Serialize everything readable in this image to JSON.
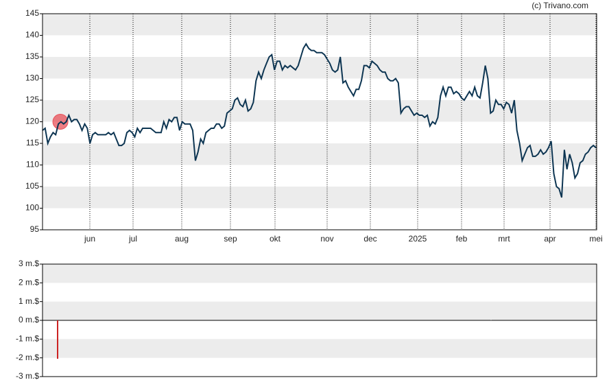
{
  "credit": "(c) Trivano.com",
  "chart_data": [
    {
      "type": "line",
      "ylim": [
        95,
        145
      ],
      "yticks": [
        95,
        100,
        105,
        110,
        115,
        120,
        125,
        130,
        135,
        140,
        145
      ],
      "xtick_labels": [
        "jun",
        "jul",
        "aug",
        "sep",
        "okt",
        "nov",
        "dec",
        "2025",
        "feb",
        "mrt",
        "apr",
        "mei"
      ],
      "grid": true,
      "marker_value": 120,
      "marker_color": "#e8525a",
      "series": [
        {
          "color": "#0d3552",
          "values": [
            118,
            118.5,
            115,
            116.5,
            117.5,
            117,
            119.5,
            120,
            119.5,
            120,
            121.5,
            120,
            120.5,
            120.5,
            119.5,
            118,
            119.5,
            118.5,
            115,
            117,
            117.5,
            117,
            117,
            117,
            117,
            117.5,
            117,
            117.5,
            116,
            114.5,
            114.5,
            115,
            117.5,
            118,
            117.5,
            116.5,
            118.5,
            117.5,
            118.5,
            118.5,
            118.5,
            118.5,
            118,
            117.5,
            117.5,
            117.5,
            120,
            118.5,
            120.5,
            120,
            121,
            121,
            118,
            120,
            119.5,
            119.5,
            119.5,
            118,
            111,
            113,
            116,
            115,
            117.5,
            118,
            118.5,
            118.5,
            119.5,
            119.5,
            118.5,
            119,
            122,
            122.5,
            123,
            125,
            125.5,
            124,
            123.5,
            125,
            122.5,
            123,
            124.5,
            129.5,
            131.5,
            130,
            132,
            133.5,
            135,
            135.5,
            132,
            134,
            134,
            132,
            133,
            132.5,
            133,
            132.5,
            132,
            133,
            135,
            137,
            138,
            137,
            136.5,
            136.5,
            136,
            136,
            136,
            135.5,
            134.5,
            133.5,
            132,
            131.5,
            132,
            135,
            129,
            129.5,
            128,
            127,
            126,
            127.5,
            127.5,
            129.5,
            133,
            133,
            132.5,
            134,
            133.5,
            133,
            132,
            131.5,
            131.5,
            130,
            129.5,
            129.5,
            130,
            129,
            122,
            123,
            123.5,
            123.5,
            122.5,
            121.5,
            122,
            121.5,
            121.5,
            121,
            121.5,
            119,
            120,
            119.5,
            121,
            126,
            128,
            126,
            128,
            128,
            126.5,
            127,
            126.5,
            125.5,
            125,
            126,
            127,
            126,
            128,
            126,
            125.5,
            129,
            133,
            130,
            122,
            122.5,
            125,
            124,
            124,
            123,
            124.5,
            124,
            122,
            125,
            118,
            115,
            111,
            112.5,
            114,
            114.5,
            112,
            112,
            112.5,
            113.5,
            112.5,
            113,
            114,
            115.5,
            108,
            105,
            104.5,
            102.5,
            113.5,
            109,
            112.5,
            110.5,
            107,
            108,
            110.5,
            111,
            112.5,
            113,
            114,
            114.5,
            114
          ]
        }
      ]
    },
    {
      "type": "bar",
      "ylim": [
        -3,
        3
      ],
      "yticks": [
        {
          "value": 3,
          "label": "3 m.$"
        },
        {
          "value": 2,
          "label": "2 m.$"
        },
        {
          "value": 1,
          "label": "1 m.$"
        },
        {
          "value": 0,
          "label": "0 m.$"
        },
        {
          "value": -1,
          "label": "-1 m.$"
        },
        {
          "value": -2,
          "label": "-2 m.$"
        },
        {
          "value": -3,
          "label": "-3 m.$"
        }
      ],
      "grid": true,
      "categories": [
        null,
        null
      ],
      "values": [
        -2.05,
        0.02
      ],
      "color": "#cc2222"
    }
  ]
}
